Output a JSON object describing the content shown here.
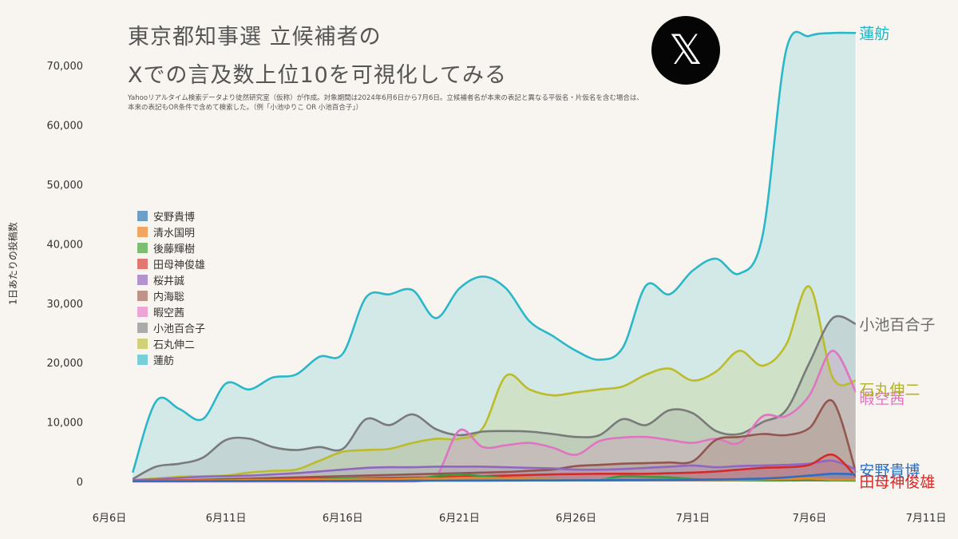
{
  "header": {
    "title_line1": "東京都知事選 立候補者の",
    "title_line2": "Xでの言及数上位10を可視化してみる",
    "note": "Yahooリアルタイム検索データより徒然研究室（仮称）が作成。対象期間は2024年6月6日から7月6日。立候補者名が本来の表記と異なる平仮名・片仮名を含む場合は、本来の表記もOR条件で含めて検索した。（例「小池ゆりこ OR 小池百合子」）"
  },
  "logo": {
    "icon": "x-logo-icon",
    "glyph": "𝕏"
  },
  "chart_data": {
    "type": "area",
    "ylabel": "1日あたりの投稿数",
    "xlabel": "",
    "x_tick_labels": [
      "6月6日",
      "6月11日",
      "6月16日",
      "6月21日",
      "6月26日",
      "7月1日",
      "7月6日",
      "7月11日"
    ],
    "x_tick_days": [
      0,
      5,
      10,
      15,
      20,
      25,
      30,
      35
    ],
    "x_range_days": [
      0,
      35
    ],
    "x_start_day": 1,
    "ylim": [
      0,
      75000
    ],
    "y_ticks": [
      0,
      10000,
      20000,
      30000,
      40000,
      50000,
      60000,
      70000
    ],
    "y_tick_labels": [
      "0",
      "10,000",
      "20,000",
      "30,000",
      "40,000",
      "50,000",
      "60,000",
      "70,000"
    ],
    "grid": false,
    "legend_position": "left-middle",
    "series": [
      {
        "name": "安野貴博",
        "color": "#2d6fbe",
        "legend_color": "#6e9fc7",
        "values": [
          50,
          60,
          60,
          70,
          80,
          80,
          90,
          90,
          100,
          100,
          110,
          110,
          120,
          130,
          140,
          150,
          160,
          170,
          180,
          200,
          220,
          240,
          260,
          280,
          300,
          350,
          400,
          500,
          700,
          1000,
          1300,
          1200
        ],
        "end_label": "安野貴博",
        "end_label_color": "#2d6fbe"
      },
      {
        "name": "清水国明",
        "color": "#e08a2a",
        "legend_color": "#f0a662",
        "values": [
          100,
          120,
          150,
          170,
          200,
          250,
          250,
          300,
          350,
          350,
          400,
          400,
          500,
          500,
          600,
          600,
          550,
          500,
          400,
          350,
          300,
          300,
          280,
          300,
          300,
          280,
          300,
          350,
          400,
          500,
          300,
          300
        ],
        "end_label": "",
        "end_label_color": "#e08a2a"
      },
      {
        "name": "後藤輝樹",
        "color": "#3d9a3d",
        "legend_color": "#7cbf72",
        "values": [
          50,
          80,
          100,
          150,
          200,
          300,
          300,
          350,
          400,
          500,
          450,
          400,
          400,
          900,
          1200,
          900,
          600,
          500,
          400,
          300,
          300,
          900,
          800,
          700,
          400,
          300,
          250,
          200,
          200,
          250,
          200,
          150
        ],
        "end_label": "",
        "end_label_color": "#3d9a3d"
      },
      {
        "name": "田母神俊雄",
        "color": "#d42a2a",
        "legend_color": "#e27670",
        "values": [
          100,
          150,
          200,
          250,
          300,
          300,
          400,
          450,
          500,
          500,
          550,
          600,
          650,
          700,
          800,
          900,
          1000,
          1100,
          1200,
          1250,
          1300,
          1300,
          1300,
          1400,
          1500,
          1700,
          2000,
          2300,
          2400,
          2800,
          4500,
          800
        ],
        "end_label": "田母神俊雄",
        "end_label_color": "#d42a2a"
      },
      {
        "name": "桜井誠",
        "color": "#8f66c0",
        "legend_color": "#b393cf",
        "values": [
          200,
          400,
          600,
          800,
          900,
          1000,
          1200,
          1400,
          1700,
          2000,
          2300,
          2400,
          2400,
          2500,
          2500,
          2500,
          2400,
          2300,
          2200,
          2000,
          2000,
          2100,
          2300,
          2500,
          2700,
          2400,
          2600,
          2700,
          2800,
          3000,
          3500,
          2000
        ],
        "end_label": "",
        "end_label_color": "#8f66c0"
      },
      {
        "name": "内海聡",
        "color": "#93564f",
        "legend_color": "#bf9488",
        "values": [
          100,
          150,
          200,
          300,
          400,
          500,
          600,
          700,
          800,
          900,
          1000,
          1100,
          1200,
          1300,
          1400,
          1500,
          1600,
          1800,
          2000,
          2600,
          2800,
          3000,
          3100,
          3200,
          3400,
          7000,
          7500,
          8000,
          7800,
          9000,
          13500,
          1500
        ],
        "end_label": "",
        "end_label_color": "#93564f"
      },
      {
        "name": "暇空茜",
        "color": "#e073c2",
        "legend_color": "#eda6d3",
        "values": [
          0,
          0,
          0,
          0,
          0,
          0,
          0,
          0,
          0,
          0,
          0,
          0,
          0,
          800,
          8600,
          5800,
          6100,
          6500,
          5700,
          4500,
          6800,
          7400,
          7500,
          7000,
          6500,
          7200,
          6500,
          11000,
          11000,
          14500,
          22000,
          15000
        ],
        "end_label": "暇空茜",
        "end_label_color": "#e073c2"
      },
      {
        "name": "小池百合子",
        "color": "#7a7a7a",
        "legend_color": "#ababab",
        "values": [
          400,
          2500,
          3000,
          4000,
          7000,
          7200,
          5800,
          5300,
          5800,
          5500,
          10500,
          9500,
          11300,
          8800,
          7800,
          8400,
          8500,
          8400,
          8000,
          7500,
          7800,
          10500,
          9500,
          12000,
          11500,
          8500,
          8000,
          10000,
          12000,
          20000,
          27500,
          26500
        ],
        "end_label": "小池百合子",
        "end_label_color": "#6b6b6b"
      },
      {
        "name": "石丸伸二",
        "color": "#bcbc2a",
        "legend_color": "#d1d17a",
        "values": [
          300,
          500,
          800,
          900,
          1000,
          1500,
          1800,
          2000,
          3500,
          5000,
          5300,
          5500,
          6500,
          7200,
          7200,
          9000,
          17800,
          15500,
          14500,
          15000,
          15500,
          16000,
          18000,
          19000,
          17000,
          18500,
          22000,
          19500,
          23000,
          32800,
          17500,
          17000
        ],
        "end_label": "石丸伸二",
        "end_label_color": "#b3b32a"
      },
      {
        "name": "蓮舫",
        "color": "#2ab8c8",
        "legend_color": "#78cfd9",
        "values": [
          1500,
          13500,
          12200,
          10500,
          16500,
          15500,
          17500,
          18000,
          21000,
          21500,
          31000,
          31500,
          32200,
          27500,
          32500,
          34500,
          32500,
          27000,
          24500,
          22000,
          20500,
          22500,
          33000,
          31500,
          35500,
          37500,
          35000,
          41500,
          72500,
          75000,
          75500,
          75500
        ],
        "end_label": "蓮舫",
        "end_label_color": "#1fb5c5"
      }
    ]
  }
}
